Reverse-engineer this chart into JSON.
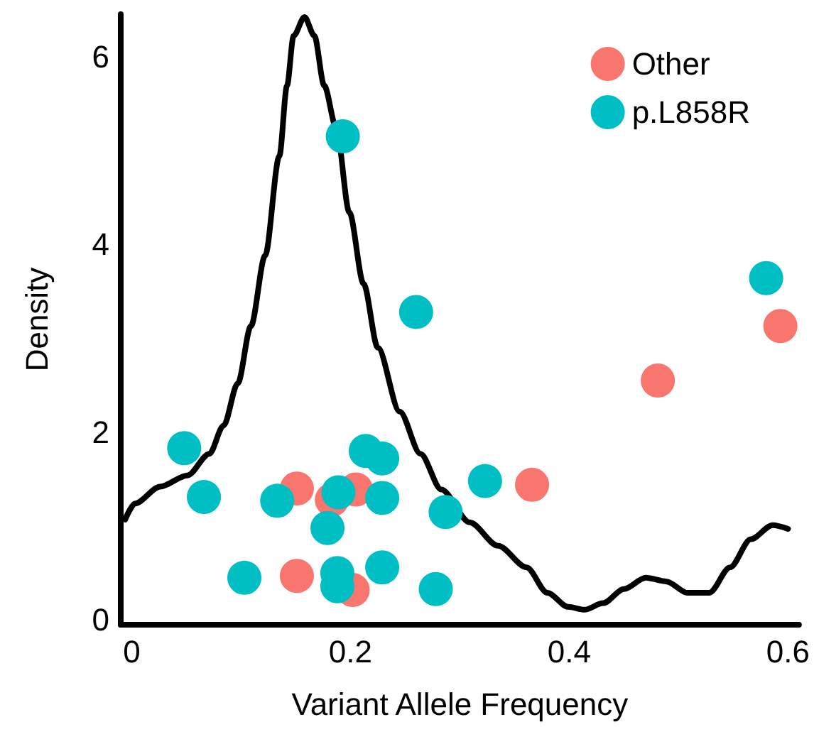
{
  "chart_data": {
    "type": "scatter",
    "xlabel": "Variant Allele Frequency",
    "ylabel": "Density",
    "xlim": [
      -0.01,
      0.61
    ],
    "xticks": [
      0,
      0.2,
      0.4,
      0.6
    ],
    "ylim": [
      -0.05,
      6.45
    ],
    "yticks": [
      0,
      2,
      4,
      6
    ],
    "grid": false,
    "legend": "top right",
    "marker": "circle",
    "series": [
      {
        "type": "line",
        "color": "#000000",
        "line_style": "solid",
        "marker": "none",
        "x": [
          -0.006,
          0.003,
          0.026,
          0.051,
          0.071,
          0.084,
          0.097,
          0.109,
          0.122,
          0.135,
          0.142,
          0.148,
          0.158,
          0.167,
          0.176,
          0.187,
          0.199,
          0.212,
          0.225,
          0.245,
          0.264,
          0.283,
          0.309,
          0.335,
          0.361,
          0.38,
          0.399,
          0.414,
          0.431,
          0.45,
          0.47,
          0.489,
          0.508,
          0.528,
          0.547,
          0.566,
          0.586,
          0.6
        ],
        "values": [
          1.07,
          1.24,
          1.42,
          1.54,
          1.77,
          2.07,
          2.52,
          3.13,
          3.88,
          4.94,
          5.69,
          6.22,
          6.42,
          6.22,
          5.69,
          5.24,
          4.34,
          3.58,
          2.9,
          2.22,
          1.77,
          1.39,
          1.04,
          0.79,
          0.56,
          0.29,
          0.14,
          0.11,
          0.18,
          0.33,
          0.45,
          0.41,
          0.29,
          0.29,
          0.56,
          0.86,
          1.01,
          0.97
        ]
      },
      {
        "name": "Other",
        "color": "#f8766d",
        "x": [
          0.151,
          0.183,
          0.205,
          0.151,
          0.202,
          0.366,
          0.481,
          0.593
        ],
        "values": [
          1.4,
          1.28,
          1.39,
          0.47,
          0.32,
          1.44,
          2.55,
          3.13
        ]
      },
      {
        "name": "p.L858R",
        "color": "#00bfc4",
        "x": [
          0.048,
          0.066,
          0.103,
          0.133,
          0.179,
          0.188,
          0.188,
          0.193,
          0.214,
          0.229,
          0.229,
          0.229,
          0.189,
          0.26,
          0.278,
          0.287,
          0.323,
          0.58
        ],
        "values": [
          1.83,
          1.31,
          0.45,
          1.27,
          0.98,
          0.5,
          0.36,
          5.15,
          1.8,
          1.72,
          1.3,
          0.56,
          1.36,
          3.28,
          0.33,
          1.15,
          1.48,
          3.64
        ]
      }
    ]
  }
}
